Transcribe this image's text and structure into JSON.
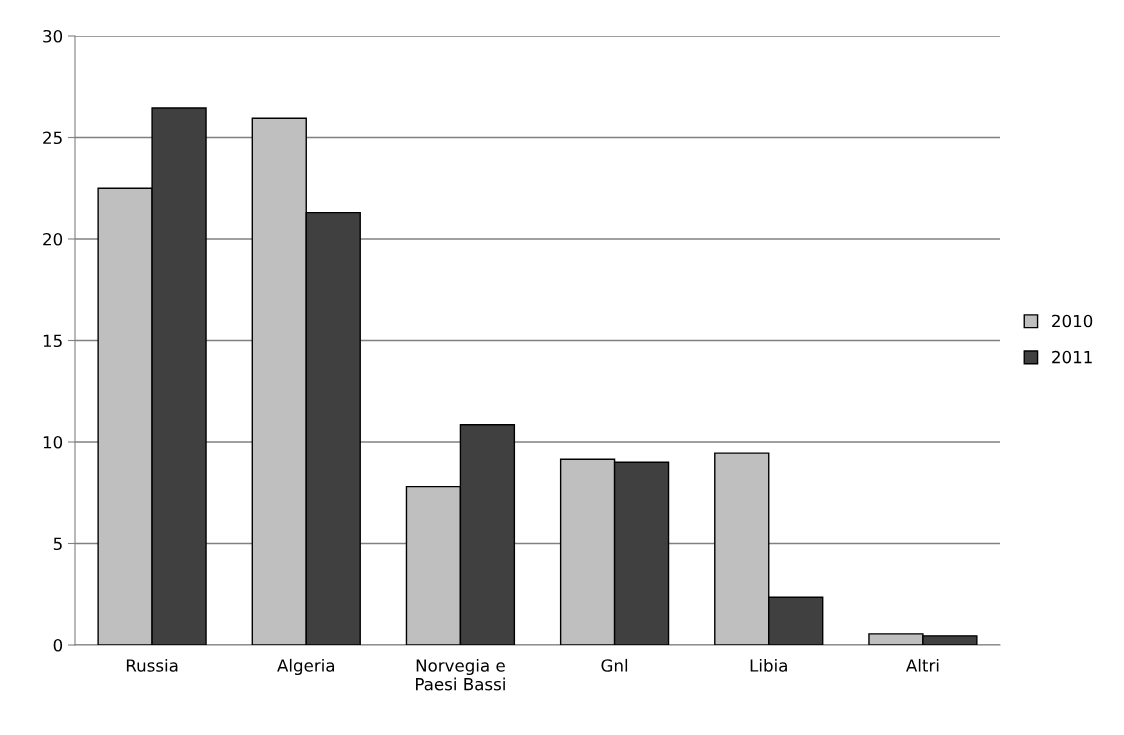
{
  "chart_data": {
    "type": "bar",
    "categories": [
      "Russia",
      "Algeria",
      "Norvegia e\nPaesi Bassi",
      "Gnl",
      "Libia",
      "Altri"
    ],
    "series": [
      {
        "name": "2010",
        "color": "#bfbfbf",
        "values": [
          22.5,
          25.95,
          7.8,
          9.15,
          9.45,
          0.55
        ]
      },
      {
        "name": "2011",
        "color": "#404040",
        "values": [
          26.45,
          21.3,
          10.85,
          9.0,
          2.35,
          0.45
        ]
      }
    ],
    "ylim": [
      0,
      30
    ],
    "yticks": [
      0,
      5,
      10,
      15,
      20,
      25,
      30
    ],
    "grid": "y",
    "legend": "right"
  }
}
